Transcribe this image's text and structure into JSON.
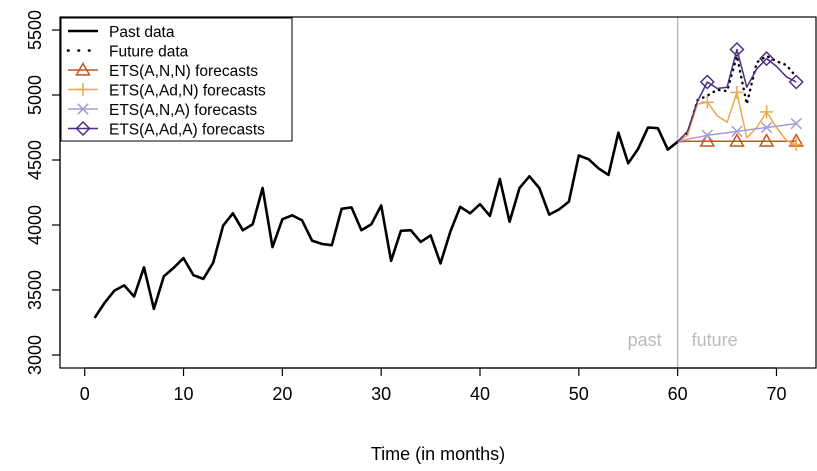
{
  "chart_data": {
    "type": "line",
    "title": "",
    "xlabel": "Time (in months)",
    "ylabel": "",
    "xlim": [
      -2.5,
      74
    ],
    "ylim": [
      2900,
      5600
    ],
    "x_ticks": [
      0,
      10,
      20,
      30,
      40,
      50,
      60,
      70
    ],
    "y_ticks": [
      3000,
      3500,
      4000,
      4500,
      5000,
      5500
    ],
    "grid": false,
    "legend_position": "top-left",
    "split": {
      "x": 60,
      "left_label": "past",
      "right_label": "future",
      "color": "#bbbbbb"
    },
    "series": [
      {
        "name": "Past data",
        "style": "solid",
        "color": "#000000",
        "marker": "none",
        "x": [
          1,
          2,
          3,
          4,
          5,
          6,
          7,
          8,
          9,
          10,
          11,
          12,
          13,
          14,
          15,
          16,
          17,
          18,
          19,
          20,
          21,
          22,
          23,
          24,
          25,
          26,
          27,
          28,
          29,
          30,
          31,
          32,
          33,
          34,
          35,
          36,
          37,
          38,
          39,
          40,
          41,
          42,
          43,
          44,
          45,
          46,
          47,
          48,
          49,
          50,
          51,
          52,
          53,
          54,
          55,
          56,
          57,
          58,
          59,
          60
        ],
        "values": [
          3285,
          3400,
          3495,
          3535,
          3450,
          3675,
          3355,
          3605,
          3670,
          3745,
          3615,
          3585,
          3710,
          3995,
          4090,
          3960,
          4005,
          4285,
          3830,
          4045,
          4075,
          4035,
          3880,
          3855,
          3845,
          4125,
          4135,
          3960,
          4005,
          4150,
          3725,
          3955,
          3960,
          3870,
          3920,
          3705,
          3950,
          4140,
          4090,
          4160,
          4070,
          4355,
          4025,
          4285,
          4375,
          4285,
          4080,
          4120,
          4180,
          4535,
          4505,
          4435,
          4385,
          4710,
          4475,
          4585,
          4750,
          4745,
          4580,
          4640
        ]
      },
      {
        "name": "Future data",
        "style": "dotted",
        "color": "#000000",
        "marker": "none",
        "x": [
          60,
          61,
          62,
          63,
          64,
          65,
          66,
          67,
          68,
          69,
          70,
          71,
          72
        ],
        "values": [
          4640,
          4700,
          4960,
          4995,
          5040,
          5030,
          5300,
          4930,
          5250,
          5300,
          5260,
          5230,
          5140
        ]
      },
      {
        "name": "ETS(A,N,N) forecasts",
        "style": "solid",
        "color": "#c0551e",
        "marker": "triangle",
        "marker_every": 3,
        "marker_offset": 2,
        "x": [
          60,
          61,
          62,
          63,
          64,
          65,
          66,
          67,
          68,
          69,
          70,
          71,
          72
        ],
        "values": [
          4640,
          4645,
          4645,
          4645,
          4645,
          4645,
          4645,
          4645,
          4645,
          4645,
          4645,
          4645,
          4645
        ]
      },
      {
        "name": "ETS(A,Ad,N) forecasts",
        "style": "solid",
        "color": "#e9aa48",
        "marker": "plus",
        "marker_every": 3,
        "marker_offset": 2,
        "x": [
          60,
          61,
          62,
          63,
          64,
          65,
          66,
          67,
          68,
          69,
          70,
          71,
          72
        ],
        "values": [
          4640,
          4690,
          4930,
          4945,
          4840,
          4790,
          5020,
          4670,
          4750,
          4870,
          4750,
          4650,
          4620
        ]
      },
      {
        "name": "ETS(A,N,A) forecasts",
        "style": "solid",
        "color": "#a59cd0",
        "marker": "x",
        "marker_every": 3,
        "marker_offset": 2,
        "x": [
          60,
          61,
          62,
          63,
          64,
          65,
          66,
          67,
          68,
          69,
          70,
          71,
          72
        ],
        "values": [
          4640,
          4660,
          4675,
          4690,
          4700,
          4710,
          4720,
          4730,
          4740,
          4750,
          4760,
          4770,
          4780
        ]
      },
      {
        "name": "ETS(A,Ad,A) forecasts",
        "style": "solid",
        "color": "#4b2e85",
        "marker": "diamond",
        "marker_every": 3,
        "marker_offset": 2,
        "x": [
          60,
          61,
          62,
          63,
          64,
          65,
          66,
          67,
          68,
          69,
          70,
          71,
          72
        ],
        "values": [
          4640,
          4720,
          4950,
          5100,
          5050,
          5060,
          5350,
          5060,
          5200,
          5280,
          5220,
          5140,
          5100
        ]
      }
    ]
  }
}
